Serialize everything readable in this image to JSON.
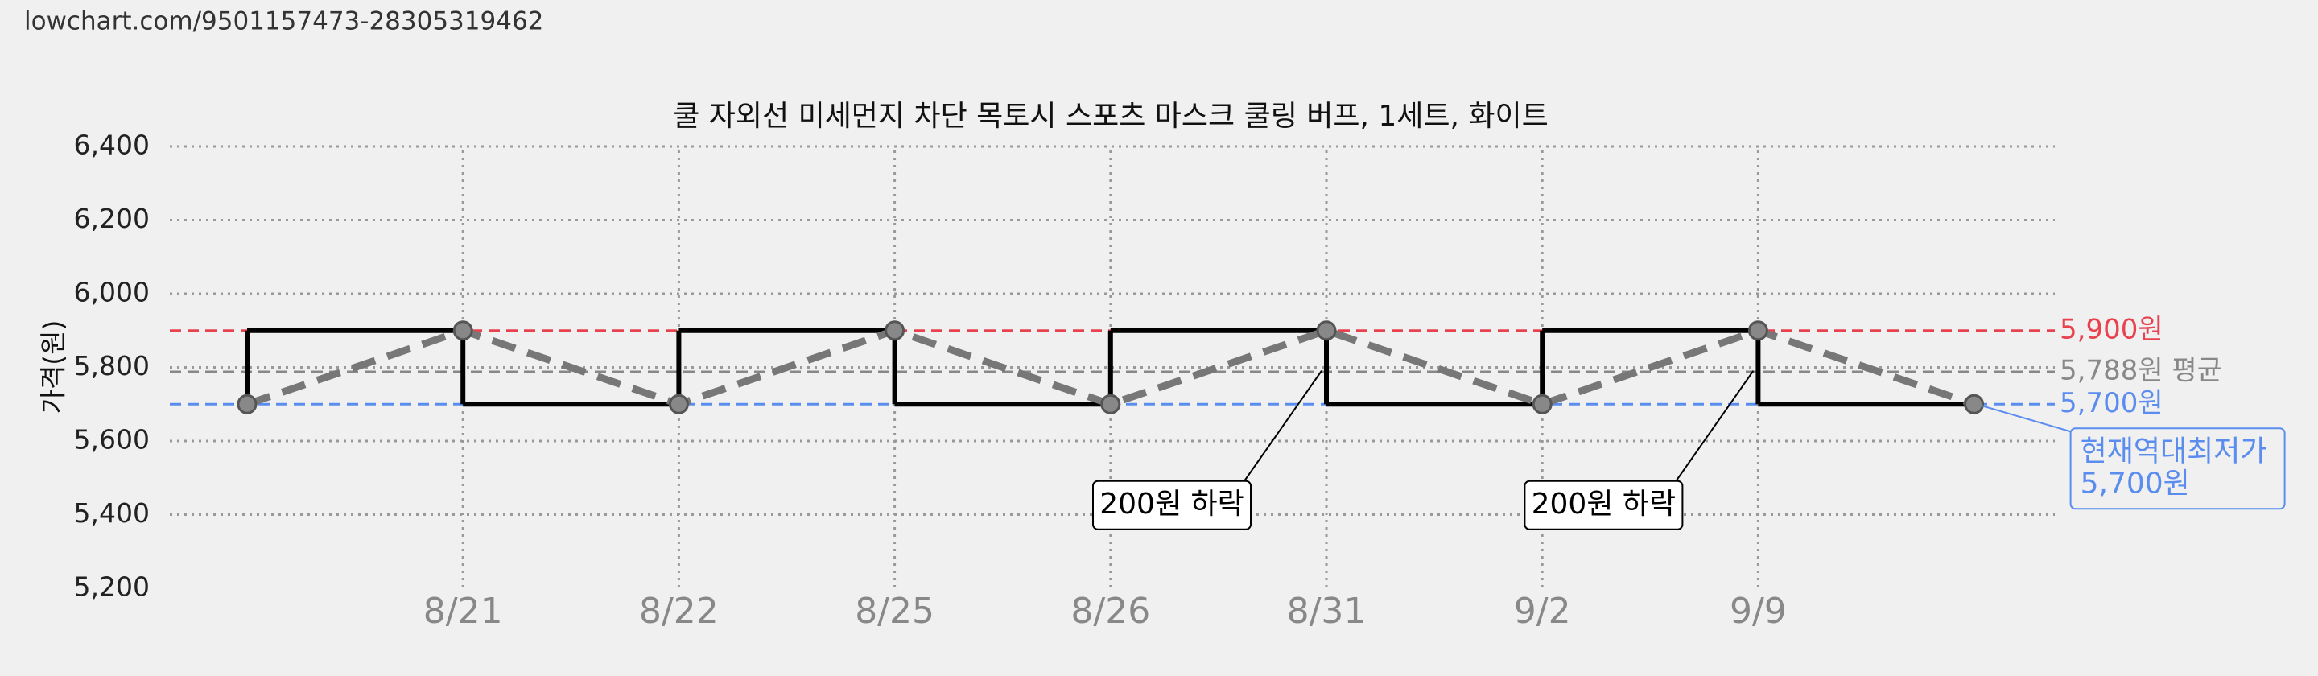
{
  "url": "lowchart.com/9501157473-28305319462",
  "chart_data": {
    "type": "line",
    "title": "쿨 자외선 미세먼지 차단 목토시 스포츠 마스크 쿨링 버프, 1세트, 화이트",
    "y_label": "가격(원)",
    "categories": [
      null,
      "8/21",
      "8/22",
      "8/25",
      "8/26",
      "8/31",
      "9/2",
      "9/9",
      null
    ],
    "series": [
      {
        "color": "#777777",
        "values": [
          5700,
          5900,
          5700,
          5900,
          5700,
          5900,
          5700,
          5900,
          5700
        ]
      }
    ],
    "step_color": "#000000",
    "ylim": [
      5200,
      6400
    ],
    "yticks": [
      {
        "value": 5200,
        "label": "5,200"
      },
      {
        "value": 5400,
        "label": "5,400"
      },
      {
        "value": 5600,
        "label": "5,600"
      },
      {
        "value": 5800,
        "label": "5,800"
      },
      {
        "value": 6000,
        "label": "6,000"
      },
      {
        "value": 6200,
        "label": "6,200"
      },
      {
        "value": 6400,
        "label": "6,400"
      }
    ],
    "grid": true,
    "reference_lines": [
      {
        "value": 5900,
        "label": "5,900원",
        "color": "#e8424f"
      },
      {
        "value": 5788,
        "label": "5,788원 평균",
        "color": "#888888"
      },
      {
        "value": 5700,
        "label": "5,700원",
        "color": "#5b8def"
      }
    ],
    "annotations": [
      {
        "index": 5,
        "lines": [
          "200원 하락"
        ]
      },
      {
        "index": 7,
        "lines": [
          "200원 하락"
        ]
      },
      {
        "index": 8,
        "lines": [
          "현재역대최저가",
          "5,700원"
        ],
        "color": "#5b8def"
      }
    ]
  }
}
